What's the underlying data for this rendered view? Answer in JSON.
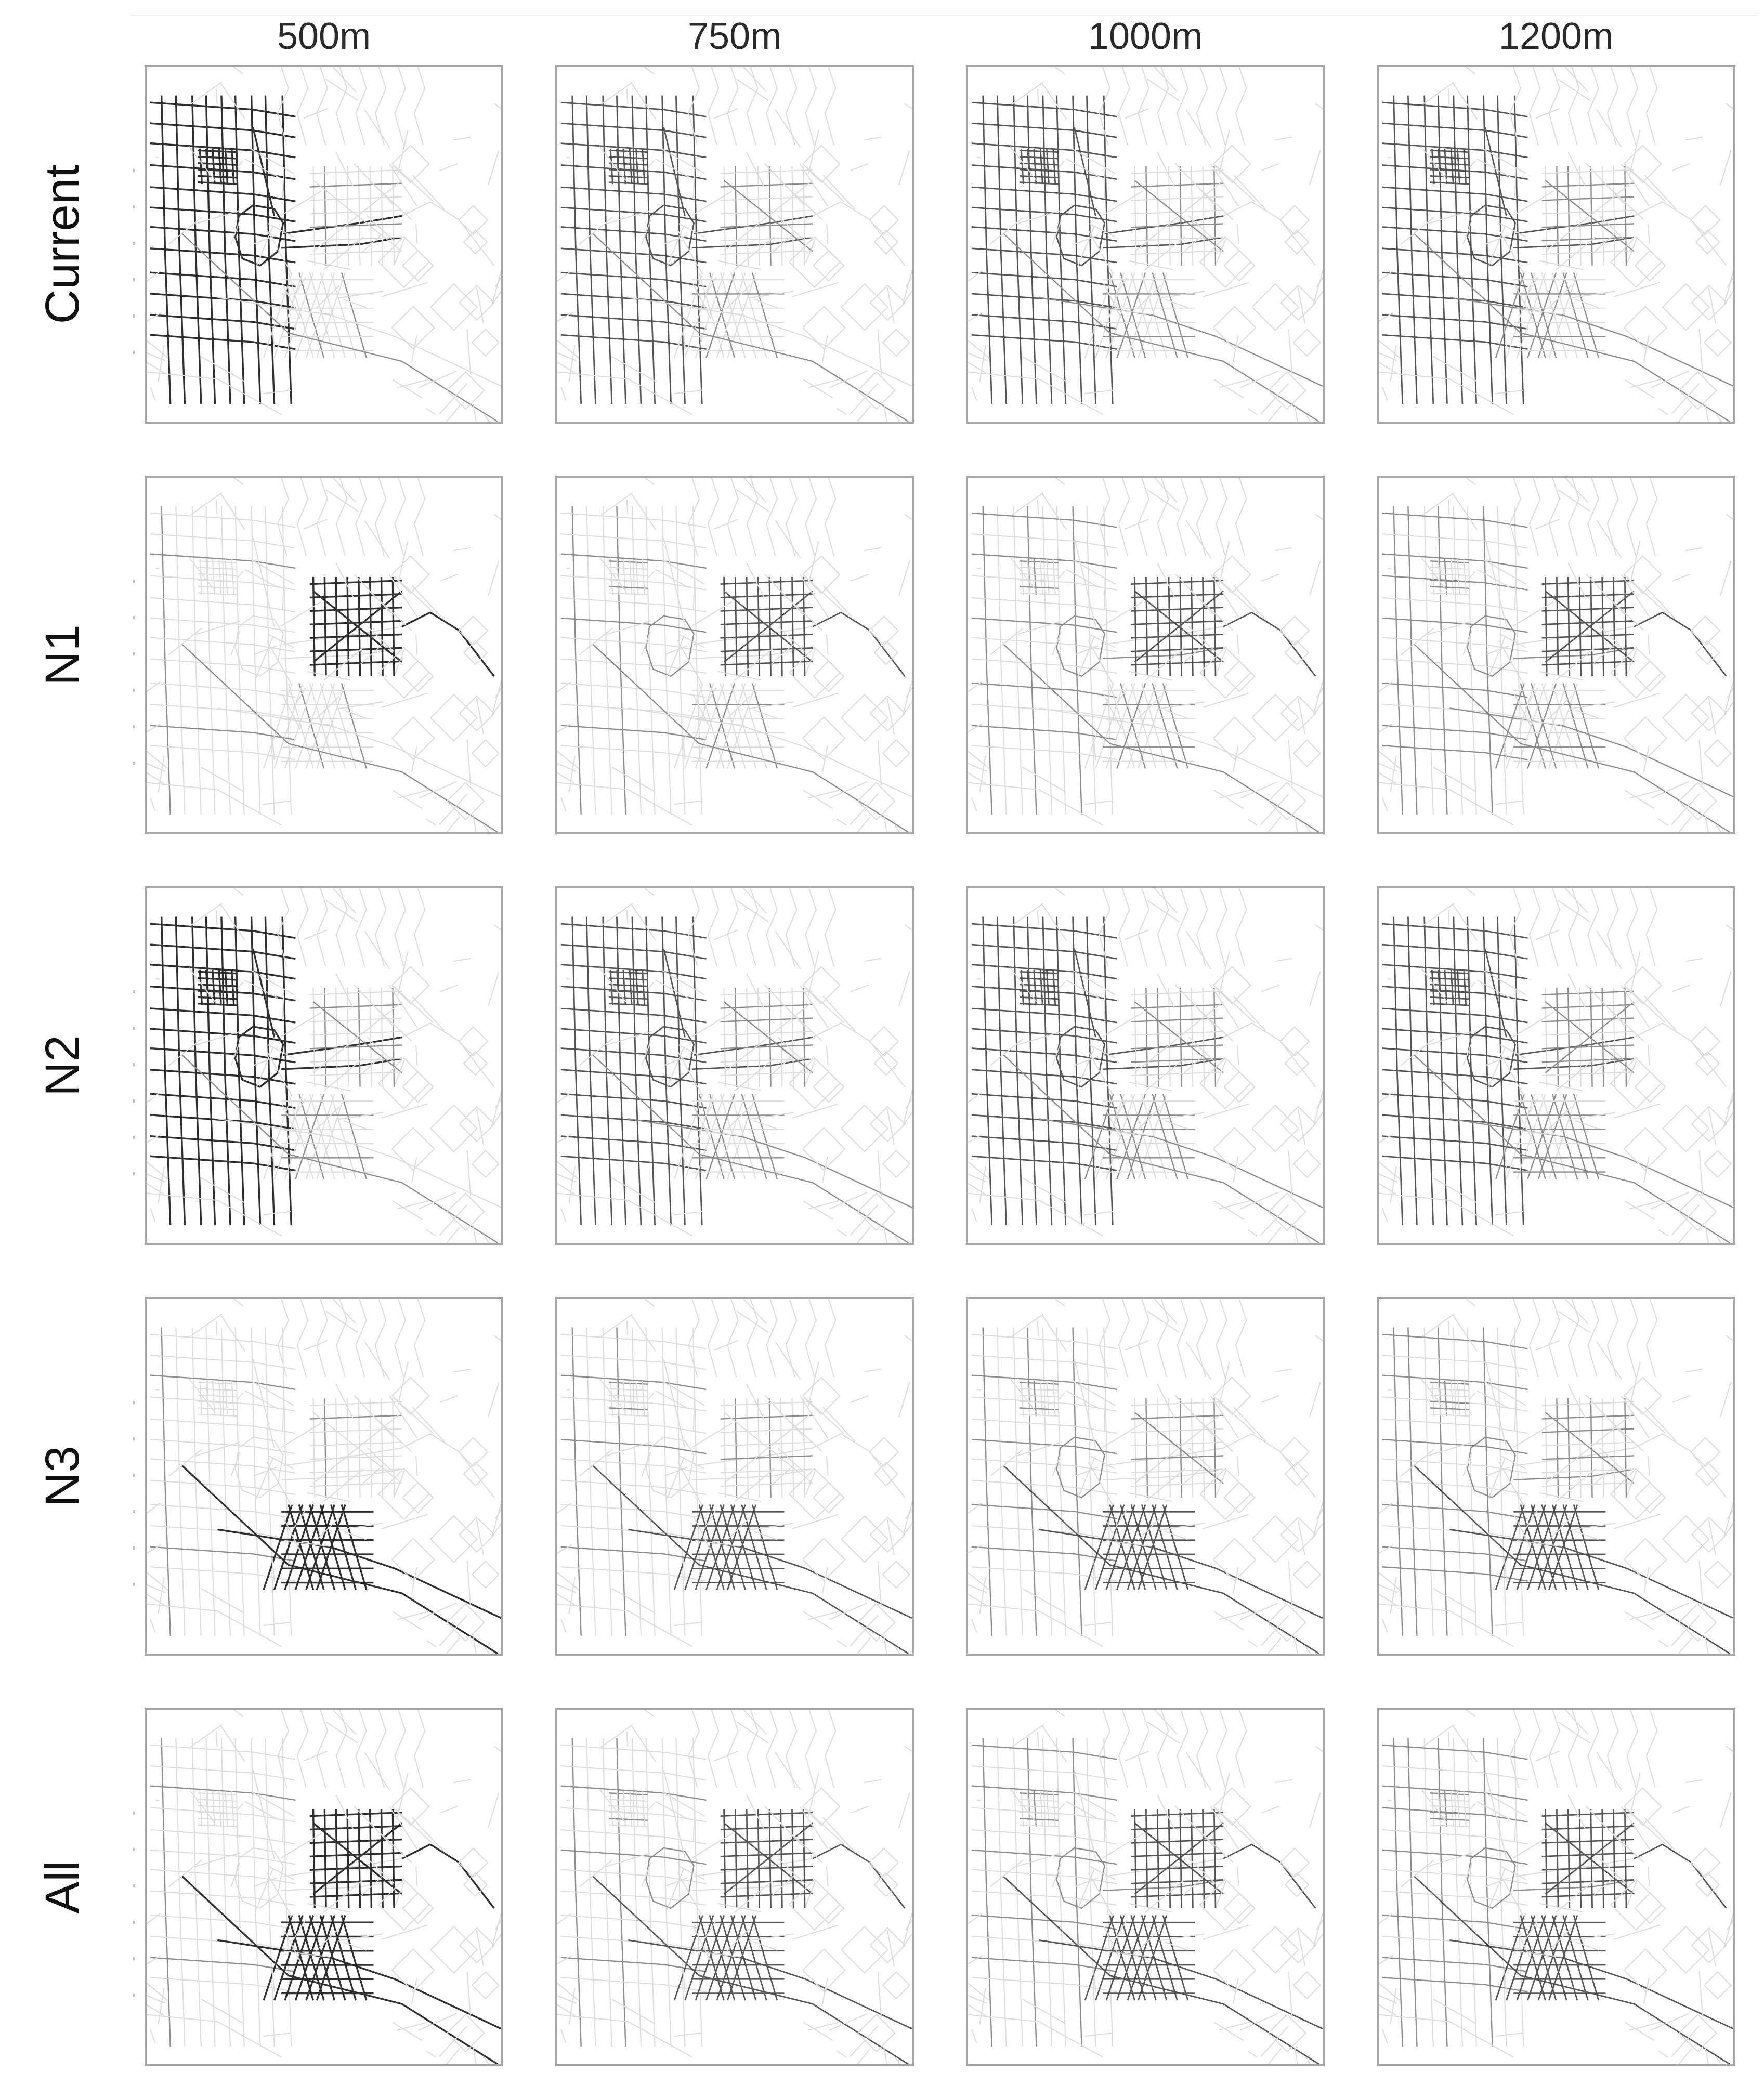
{
  "figure": {
    "columns": [
      {
        "label": "500m"
      },
      {
        "label": "750m"
      },
      {
        "label": "1000m"
      },
      {
        "label": "1200m"
      }
    ],
    "rows": [
      {
        "label": "Current",
        "focus": "northwest-grid",
        "spread": 0.15
      },
      {
        "label": "N1",
        "focus": "east-block",
        "spread": 0.1
      },
      {
        "label": "N2",
        "focus": "northwest-grid",
        "spread": 0.3
      },
      {
        "label": "N3",
        "focus": "south-center",
        "spread": 0.08
      },
      {
        "label": "All",
        "focus": "east-and-south",
        "spread": 0.1
      }
    ],
    "colors": {
      "faint_street": "#dcdcdc",
      "dark_street": "#2f2f2f",
      "frame": "#a6a6a6"
    }
  }
}
